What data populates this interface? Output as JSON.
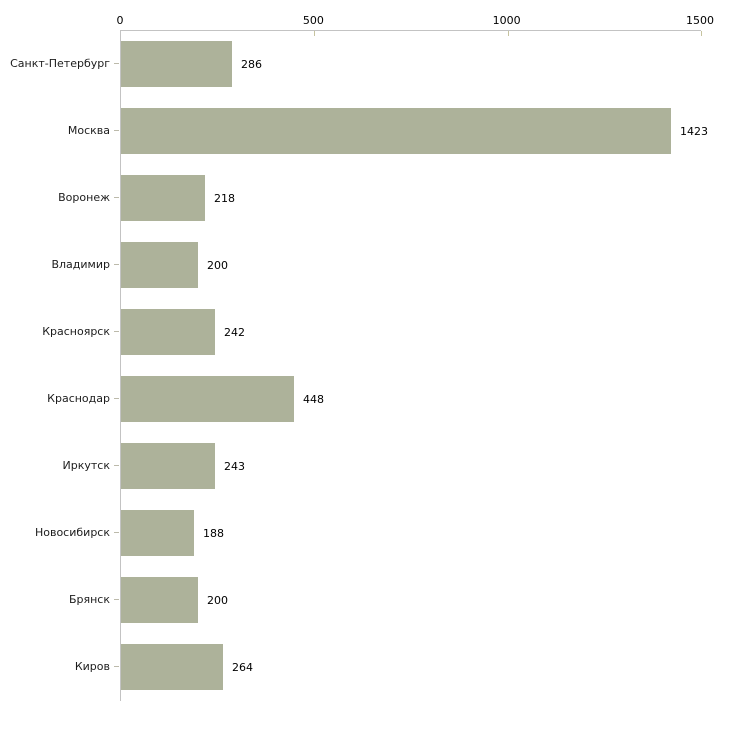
{
  "chart_data": {
    "type": "bar",
    "orientation": "horizontal",
    "title": "",
    "xlabel": "",
    "ylabel": "",
    "categories": [
      "Санкт-Петербург",
      "Москва",
      "Воронеж",
      "Владимир",
      "Красноярск",
      "Краснодар",
      "Иркутск",
      "Новосибирск",
      "Брянск",
      "Киров"
    ],
    "values": [
      286,
      1423,
      218,
      200,
      242,
      448,
      243,
      188,
      200,
      264
    ],
    "xlim": [
      0,
      1500
    ],
    "x_ticks": [
      0,
      500,
      1000,
      1500
    ],
    "grid": false,
    "legend": false,
    "axis_position": "top-left",
    "bar_color": "#adb29a",
    "axis_line_color": "#c3c3c3",
    "x_tick_mark_color": "#c6c39f",
    "y_tick_mark_color": "#bcbaab",
    "value_label_color": "#000000",
    "category_label_color": "#1c1c1c"
  }
}
